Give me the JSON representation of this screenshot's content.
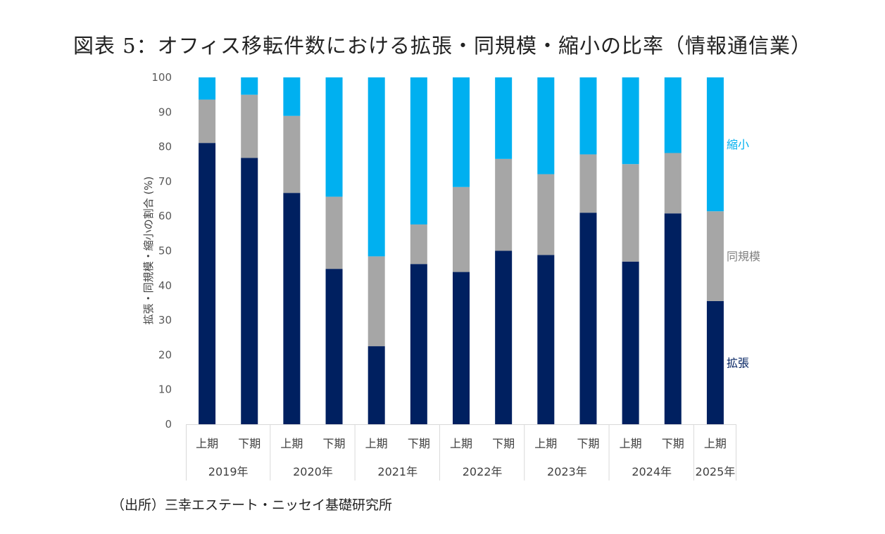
{
  "chart_data": {
    "type": "bar",
    "stacked": true,
    "title": "図表 5：オフィス移転件数における拡張・同規模・縮小の比率（情報通信業）",
    "ylabel": "拡張・同規模・縮小の割合 (%)",
    "ylim": [
      0,
      100
    ],
    "yticks": [
      "0",
      "10",
      "20",
      "30",
      "40",
      "50",
      "60",
      "70",
      "80",
      "90",
      "100"
    ],
    "categories": [
      "上期",
      "下期",
      "上期",
      "下期",
      "上期",
      "下期",
      "上期",
      "下期",
      "上期",
      "下期",
      "上期",
      "下期",
      "上期"
    ],
    "groups": [
      "2019年",
      "2020年",
      "2021年",
      "2022年",
      "2023年",
      "2024年",
      "2025年"
    ],
    "series": [
      {
        "name": "拡張",
        "color": "#002060",
        "values": [
          81.1,
          76.8,
          66.7,
          44.8,
          22.5,
          46.2,
          43.9,
          50.0,
          48.8,
          61.0,
          46.9,
          60.8,
          35.5
        ]
      },
      {
        "name": "同規模",
        "color": "#a6a6a6",
        "values": [
          12.5,
          18.2,
          22.2,
          20.8,
          25.9,
          11.4,
          24.5,
          26.5,
          23.3,
          16.8,
          28.1,
          17.4,
          25.9
        ]
      },
      {
        "name": "縮小",
        "color": "#00b0f0",
        "values": [
          6.4,
          5.0,
          11.1,
          34.4,
          51.6,
          42.4,
          31.6,
          23.5,
          27.9,
          22.2,
          25.0,
          21.8,
          38.6
        ]
      }
    ],
    "legend": "right",
    "grid": false
  },
  "source": "（出所）三幸エステート・ニッセイ基礎研究所"
}
